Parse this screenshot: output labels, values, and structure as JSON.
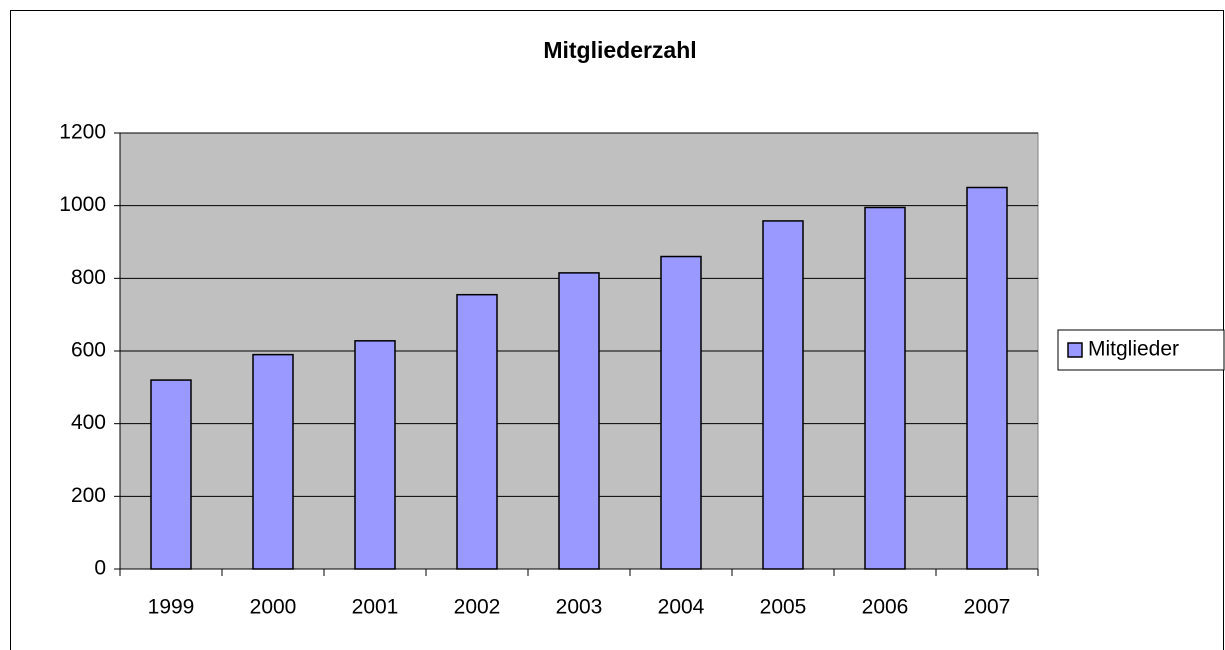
{
  "chart_data": {
    "type": "bar",
    "title": "Mitgliederzahl",
    "categories": [
      "1999",
      "2000",
      "2001",
      "2002",
      "2003",
      "2004",
      "2005",
      "2006",
      "2007"
    ],
    "series": [
      {
        "name": "Mitglieder",
        "color": "#9999ff",
        "values": [
          520,
          590,
          628,
          755,
          815,
          860,
          958,
          995,
          1050
        ]
      }
    ],
    "ylim": [
      0,
      1200
    ],
    "yticks": [
      0,
      200,
      400,
      600,
      800,
      1000,
      1200
    ],
    "grid": true,
    "legend": "right"
  }
}
